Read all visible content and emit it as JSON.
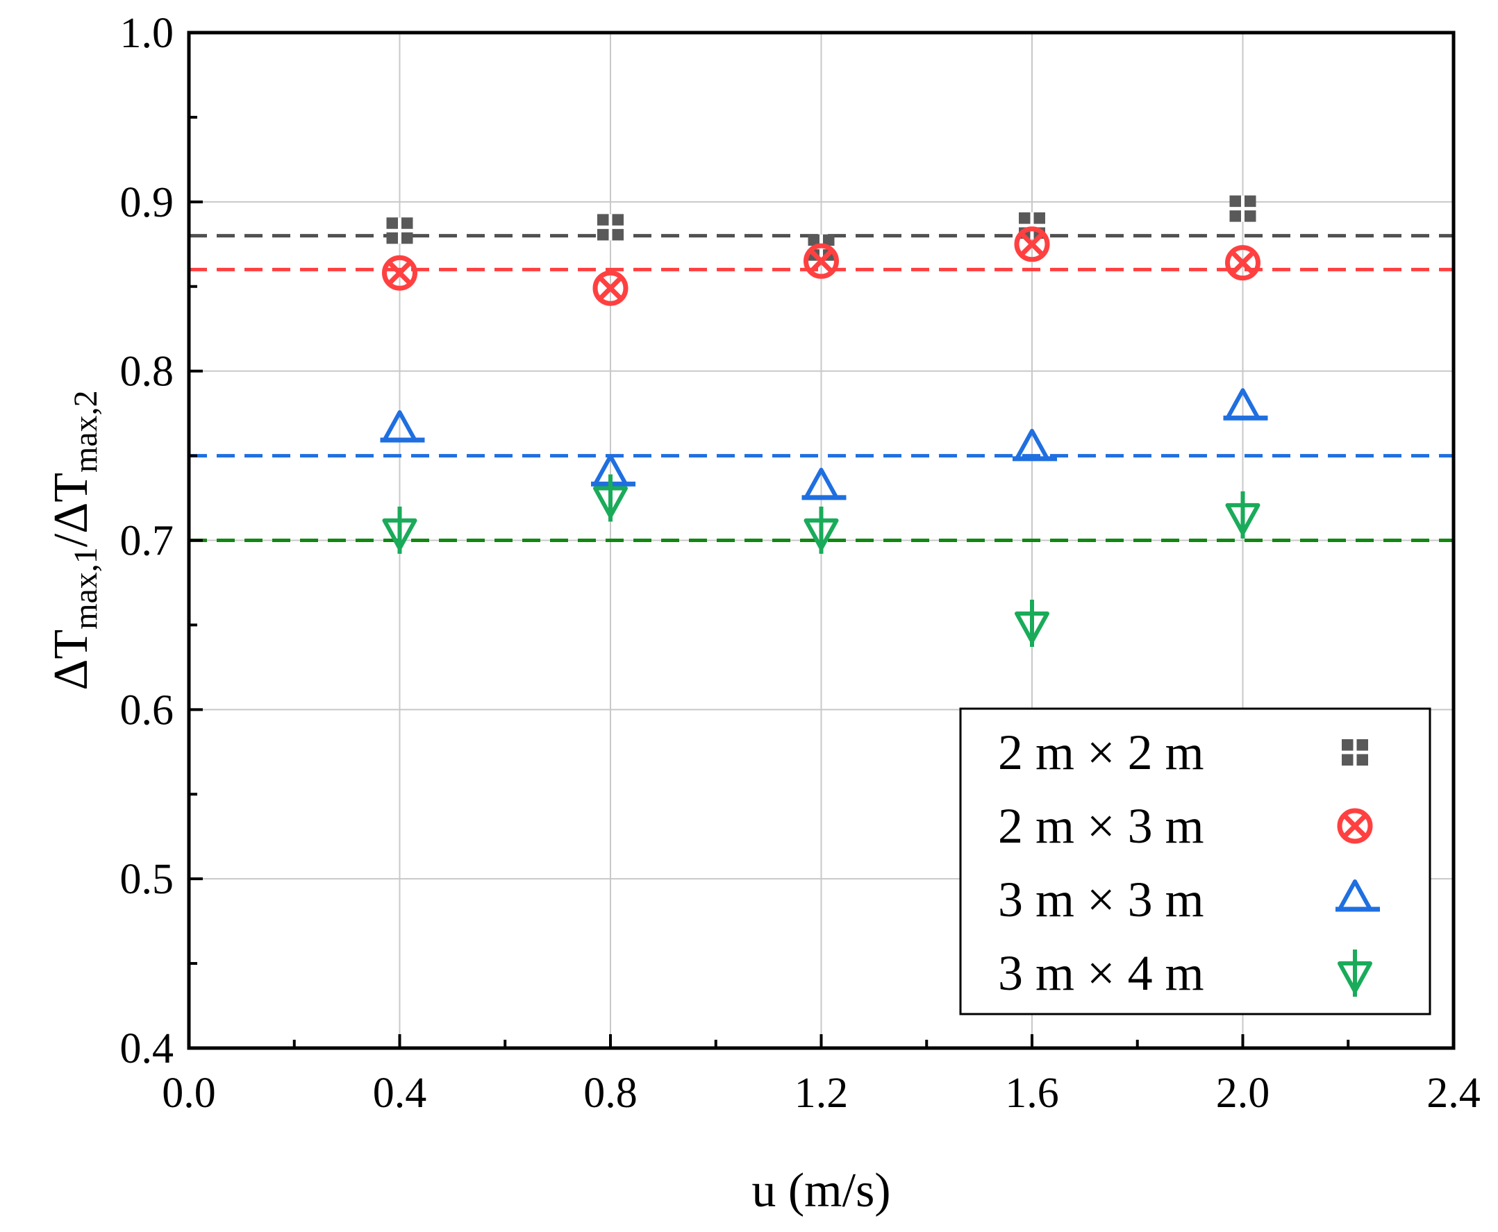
{
  "chart_data": {
    "type": "scatter",
    "title": "",
    "xlabel": "u (m/s)",
    "ylabel": {
      "prefix1": "ΔT",
      "sub1": "max,1",
      "slash": "/",
      "prefix2": "ΔT",
      "sub2": "max,2"
    },
    "xlim": [
      0.0,
      2.4
    ],
    "ylim": [
      0.4,
      1.0
    ],
    "x_ticks": [
      "0.0",
      "0.4",
      "0.8",
      "1.2",
      "1.6",
      "2.0",
      "2.4"
    ],
    "y_ticks": [
      "0.4",
      "0.5",
      "0.6",
      "0.7",
      "0.8",
      "0.9",
      "1.0"
    ],
    "grid": true,
    "legend_position": "bottom-right",
    "x": [
      0.4,
      0.8,
      1.2,
      1.6,
      2.0
    ],
    "series": [
      {
        "name": "2 m × 2 m",
        "marker": "square-cross",
        "color": "#595959",
        "values": [
          0.883,
          0.885,
          0.873,
          0.886,
          0.896
        ],
        "reference_line": 0.88
      },
      {
        "name": "2 m × 3 m",
        "marker": "circle-x",
        "color": "#ff4040",
        "values": [
          0.858,
          0.849,
          0.865,
          0.875,
          0.864
        ],
        "reference_line": 0.86
      },
      {
        "name": "3 m × 3 m",
        "marker": "triangle-up",
        "color": "#1f6fe0",
        "values": [
          0.765,
          0.739,
          0.731,
          0.754,
          0.778
        ],
        "reference_line": 0.75
      },
      {
        "name": "3 m × 4 m",
        "marker": "triangle-down",
        "color": "#1aab5a",
        "values": [
          0.706,
          0.725,
          0.706,
          0.651,
          0.715
        ],
        "reference_line": 0.7
      }
    ],
    "reference_line_colors": [
      "#505050",
      "#ff4040",
      "#1f6fe0",
      "#118811"
    ]
  }
}
